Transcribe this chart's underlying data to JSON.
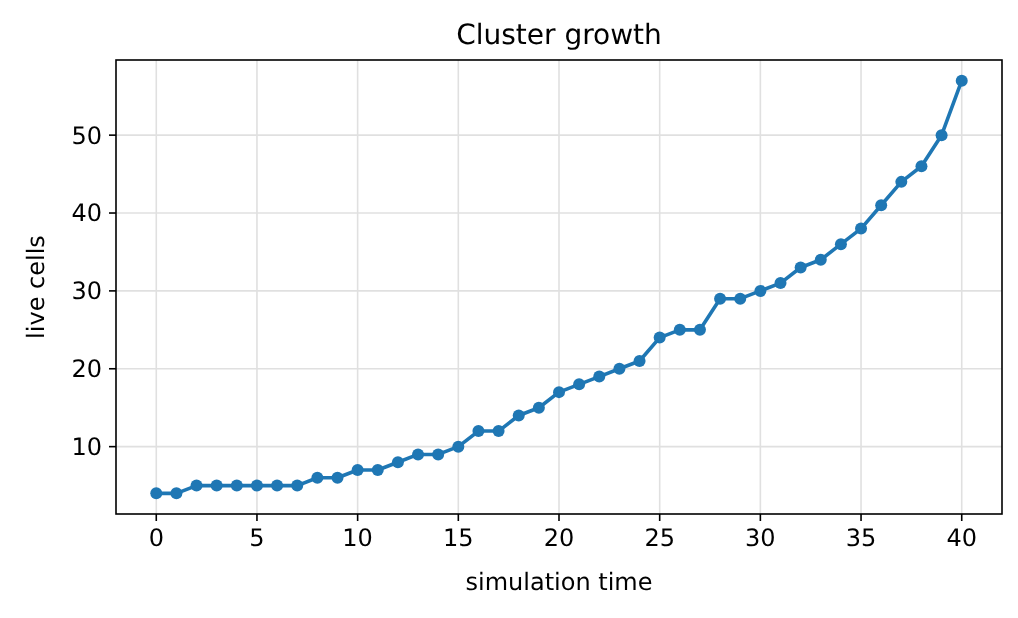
{
  "chart_data": {
    "type": "line",
    "title": "Cluster growth",
    "xlabel": "simulation time",
    "ylabel": "live cells",
    "x": [
      0,
      1,
      2,
      3,
      4,
      5,
      6,
      7,
      8,
      9,
      10,
      11,
      12,
      13,
      14,
      15,
      16,
      17,
      18,
      19,
      20,
      21,
      22,
      23,
      24,
      25,
      26,
      27,
      28,
      29,
      30,
      31,
      32,
      33,
      34,
      35,
      36,
      37,
      38,
      39,
      40
    ],
    "series": [
      {
        "color": "#1f77b4",
        "values": [
          4,
          4,
          5,
          5,
          5,
          5,
          5,
          5,
          6,
          6,
          7,
          7,
          8,
          9,
          9,
          10,
          12,
          12,
          14,
          15,
          17,
          18,
          19,
          20,
          21,
          24,
          25,
          25,
          29,
          29,
          30,
          31,
          33,
          34,
          36,
          38,
          41,
          44,
          46,
          50,
          57
        ]
      }
    ],
    "xlim": [
      -2,
      42
    ],
    "xticks": [
      0,
      5,
      10,
      15,
      20,
      25,
      30,
      35,
      40
    ],
    "ylim": [
      1.35,
      59.65
    ],
    "yticks": [
      10,
      20,
      30,
      40,
      50
    ],
    "grid": true,
    "marker": "circle",
    "line_style": "solid"
  }
}
